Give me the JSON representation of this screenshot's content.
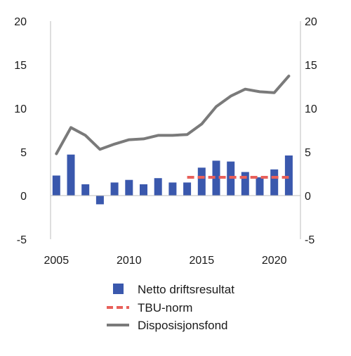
{
  "chart_data": {
    "type": "bar",
    "x": [
      2005,
      2006,
      2007,
      2008,
      2009,
      2010,
      2011,
      2012,
      2013,
      2014,
      2015,
      2016,
      2017,
      2018,
      2019,
      2020,
      2021
    ],
    "x_ticks": [
      2005,
      2010,
      2015,
      2020
    ],
    "y_ticks": [
      -5,
      0,
      5,
      10,
      15,
      20
    ],
    "ylim": [
      -5,
      20
    ],
    "xlim": [
      2004.6,
      2021.8
    ],
    "grid": false,
    "legend_position": "bottom-center",
    "series": [
      {
        "name": "Netto driftsresultat",
        "type": "bar",
        "color": "#3a58ad",
        "values": [
          2.3,
          4.7,
          1.3,
          -1.0,
          1.5,
          1.8,
          1.3,
          2.0,
          1.5,
          1.5,
          3.2,
          4.0,
          3.9,
          2.7,
          2.1,
          3.0,
          4.6
        ]
      },
      {
        "name": "TBU-norm",
        "type": "dashed-line",
        "color": "#e8605a",
        "x": [
          2014,
          2021
        ],
        "values": [
          2.1,
          2.1
        ]
      },
      {
        "name": "Disposisjonsfond",
        "type": "line",
        "color": "#7a7a7a",
        "values": [
          4.8,
          7.8,
          6.9,
          5.3,
          5.9,
          6.4,
          6.5,
          6.9,
          6.9,
          7.0,
          8.2,
          10.2,
          11.4,
          12.2,
          11.9,
          11.8,
          13.7
        ]
      }
    ]
  }
}
